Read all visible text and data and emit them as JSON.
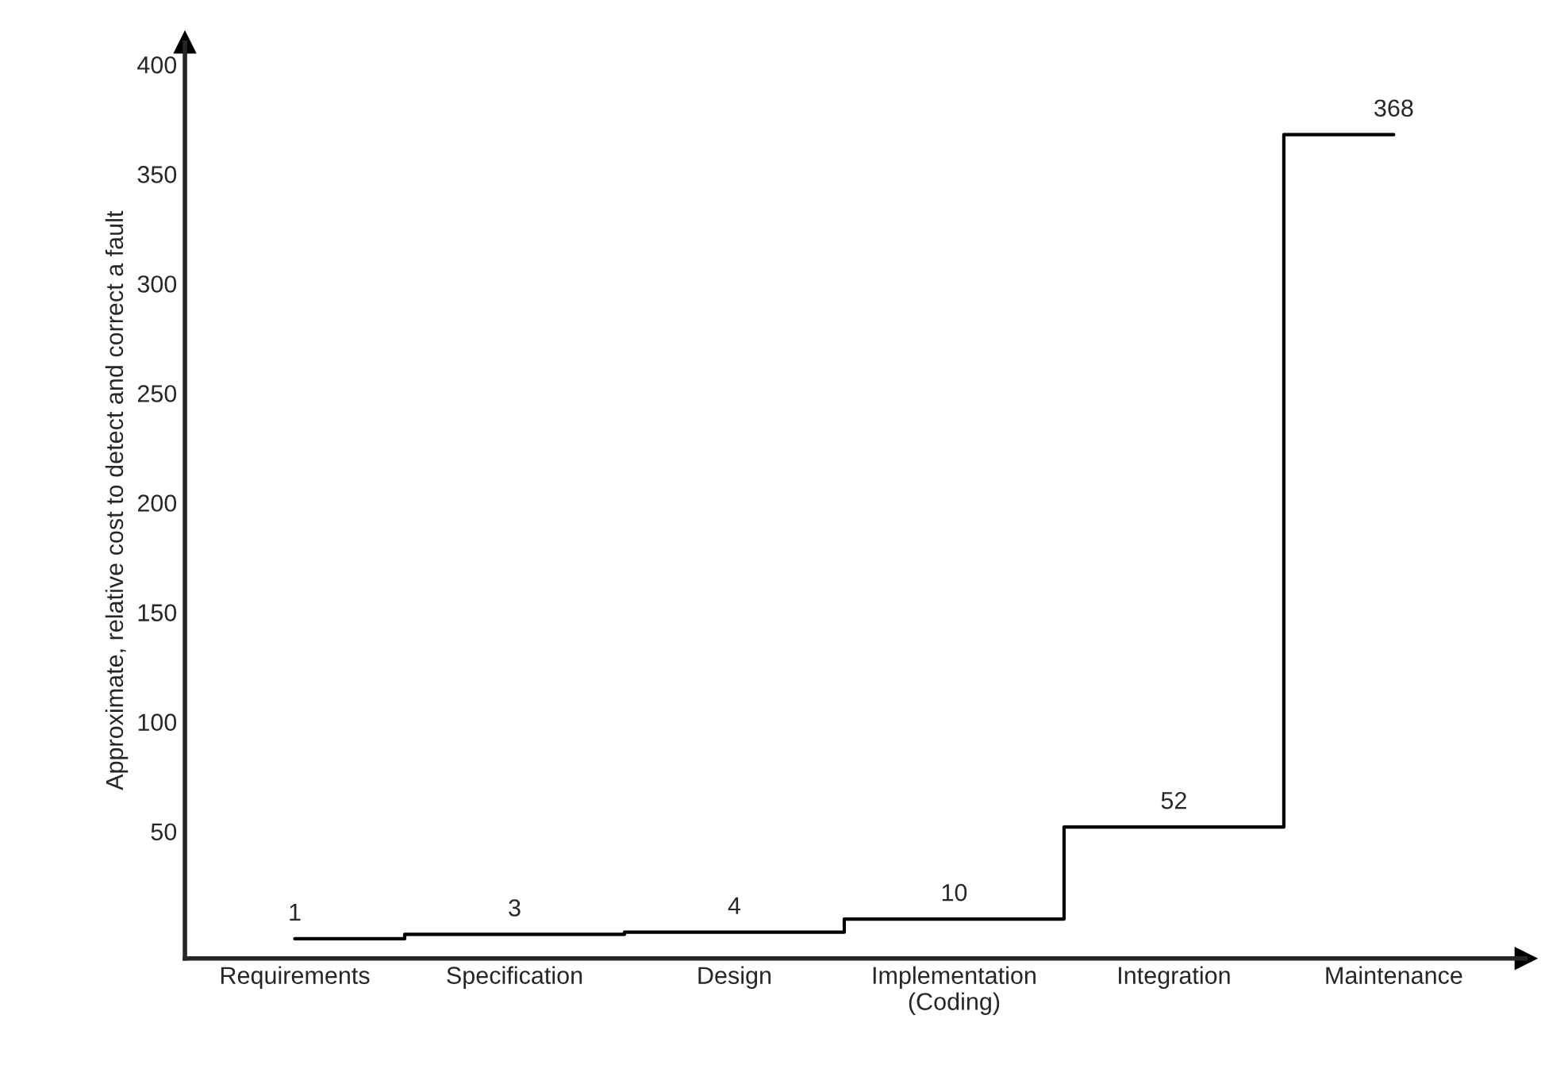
{
  "chart_data": {
    "type": "step",
    "ylabel": "Approximate, relative cost to detect and correct a fault",
    "categories": [
      "Requirements",
      "Specification",
      "Design",
      "Implementation\n(Coding)",
      "Integration",
      "Maintenance"
    ],
    "series": [
      {
        "color": "#000000",
        "values": [
          1,
          3,
          4,
          10,
          52,
          368
        ]
      }
    ],
    "ylim": [
      -8,
      410
    ],
    "yticks": [
      50,
      100,
      150,
      200,
      250,
      300,
      350,
      400
    ],
    "data_labels": true,
    "grid": false,
    "legend": false,
    "line_style": "solid"
  }
}
